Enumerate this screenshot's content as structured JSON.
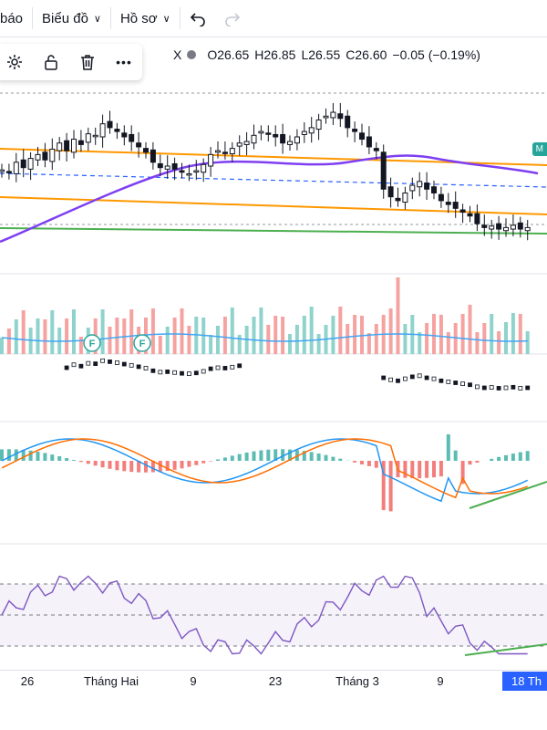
{
  "toolbar": {
    "items": [
      {
        "label": "báo",
        "has_dropdown": false
      },
      {
        "label": "Biểu đồ",
        "has_dropdown": true
      },
      {
        "label": "Hồ sơ",
        "has_dropdown": true
      }
    ],
    "undo_icon": "undo-icon",
    "redo_icon": "redo-icon"
  },
  "float_toolbar": {
    "icons": [
      "gear-icon",
      "unlock-icon",
      "trash-icon",
      "more-icon"
    ],
    "more_glyph": "•••"
  },
  "ohlc": {
    "symbol_fragment": "X",
    "open": "O26.65",
    "high": "H26.85",
    "low": "L26.55",
    "close": "C26.60",
    "change": "−0.05 (−0.19%)"
  },
  "colors": {
    "up": "#26a69a",
    "down": "#ef5350",
    "ma_purple": "#7e3ff2",
    "channel_orange": "#ff9800",
    "support_green": "#4caf50",
    "dashed_blue": "#2962ff",
    "macd_blue": "#2196f3",
    "signal_orange": "#ff6d00",
    "rsi_purple": "#7e57c2",
    "axis_current_bg": "#2962ff"
  },
  "badges": {
    "ma_badge": "M"
  },
  "events": [
    "F",
    "F"
  ],
  "chart_data": {
    "type": "candlestick",
    "title": "",
    "xlabel": "",
    "ylabel": "",
    "last_ohlc": {
      "open": 26.65,
      "high": 26.85,
      "low": 26.55,
      "close": 26.6,
      "change": -0.05,
      "change_pct": -0.19
    },
    "x_tick_labels": [
      "26",
      "Tháng Hai",
      "9",
      "23",
      "Tháng 3",
      "9",
      "18 Th"
    ],
    "x_tick_bars": [
      4,
      14,
      27,
      38,
      49,
      61,
      73
    ],
    "current_date_label": "18 Th",
    "panes": [
      "price",
      "volume",
      "secondary",
      "macd",
      "rsi"
    ],
    "price_closes_approx": [
      27.35,
      27.32,
      27.45,
      27.38,
      27.5,
      27.55,
      27.48,
      27.62,
      27.7,
      27.6,
      27.75,
      27.68,
      27.82,
      27.8,
      27.95,
      27.9,
      27.85,
      27.78,
      27.72,
      27.65,
      27.58,
      27.45,
      27.38,
      27.4,
      27.36,
      27.32,
      27.3,
      27.34,
      27.42,
      27.55,
      27.6,
      27.58,
      27.63,
      27.7,
      27.72,
      27.8,
      27.85,
      27.83,
      27.78,
      27.7,
      27.72,
      27.78,
      27.85,
      27.9,
      28.0,
      28.05,
      28.1,
      28.02,
      27.9,
      27.85,
      27.75,
      27.65,
      27.6,
      27.1,
      27.0,
      26.95,
      27.05,
      27.15,
      27.2,
      27.1,
      27.05,
      26.95,
      26.9,
      26.85,
      26.8,
      26.75,
      26.65,
      26.6,
      26.62,
      26.58,
      26.6,
      26.63,
      26.58,
      26.6
    ],
    "rsi_bands": [
      70,
      50,
      30
    ]
  }
}
